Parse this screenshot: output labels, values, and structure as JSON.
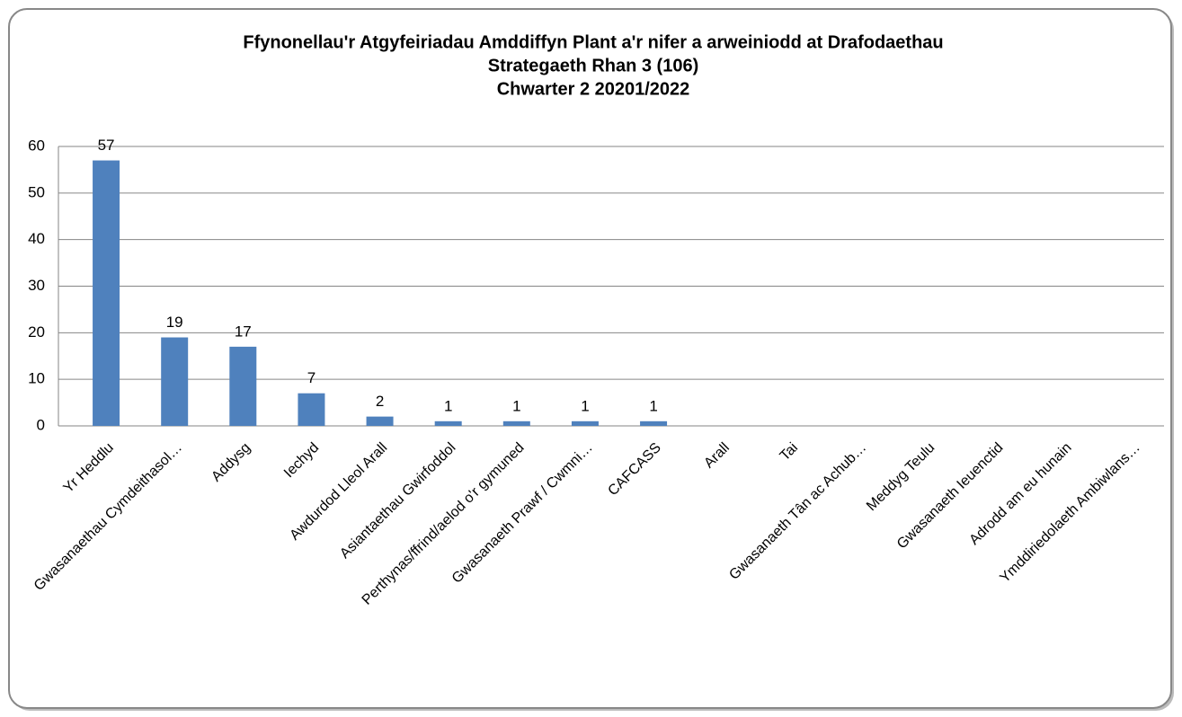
{
  "chart_data": {
    "type": "bar",
    "title": [
      "Ffynonellau'r Atgyfeiriadau Amddiffyn Plant a'r nifer a arweiniodd at Drafodaethau",
      "Strategaeth Rhan 3 (106)",
      "Chwarter 2  20201/2022"
    ],
    "categories": [
      "Yr Heddlu",
      "Gwasanaethau Cymdeithasol…",
      "Addysg",
      "Iechyd",
      "Awdurdod Lleol Arall",
      "Asiantaethau Gwirfoddol",
      "Perthynas/ffrind/aelod o'r gymuned",
      "Gwasanaeth Prawf / Cwmni…",
      "CAFCASS",
      "Arall",
      "Tai",
      "Gwasanaeth Tân ac Achub…",
      "Meddyg Teulu",
      "Gwasanaeth Ieuenctid",
      "Adrodd am eu hunain",
      "Ymddiriedolaeth Ambiwlans…"
    ],
    "values": [
      57,
      19,
      17,
      7,
      2,
      1,
      1,
      1,
      1,
      0,
      0,
      0,
      0,
      0,
      0,
      0
    ],
    "value_labels": [
      57,
      19,
      17,
      7,
      2,
      1,
      1,
      1,
      1,
      null,
      null,
      null,
      null,
      null,
      null,
      null
    ],
    "color": "#4f81bd",
    "ylim": [
      0,
      60
    ],
    "yticks": [
      0,
      10,
      20,
      30,
      40,
      50,
      60
    ],
    "grid": true
  }
}
